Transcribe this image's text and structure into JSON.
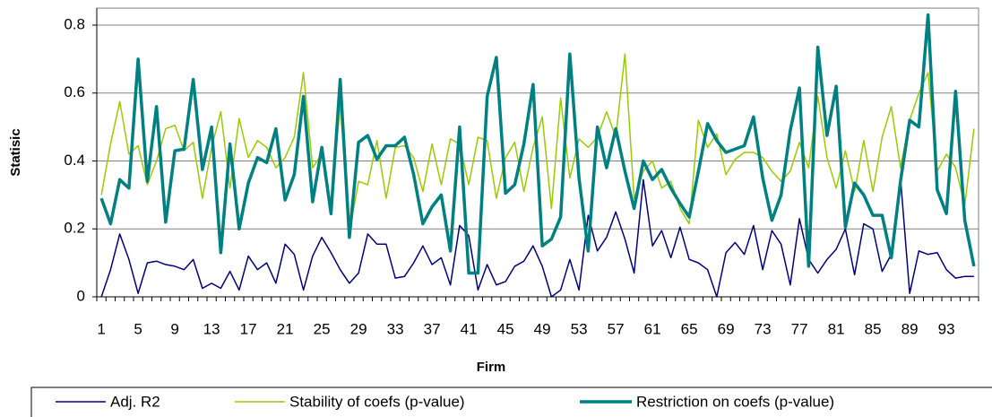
{
  "chart_data": {
    "type": "line",
    "x_label": "Firm",
    "y_label": "Statisic",
    "categories": [
      "1",
      null,
      null,
      null,
      "5",
      null,
      null,
      null,
      "9",
      null,
      null,
      null,
      "13",
      null,
      null,
      null,
      "17",
      null,
      null,
      null,
      "21",
      null,
      null,
      null,
      "25",
      null,
      null,
      null,
      "29",
      null,
      null,
      null,
      "33",
      null,
      null,
      null,
      "37",
      null,
      null,
      null,
      "41",
      null,
      null,
      null,
      "45",
      null,
      null,
      null,
      "49",
      null,
      null,
      null,
      "53",
      null,
      null,
      null,
      "57",
      null,
      null,
      null,
      "61",
      null,
      null,
      null,
      "65",
      null,
      null,
      null,
      "69",
      null,
      null,
      null,
      "73",
      null,
      null,
      null,
      "77",
      null,
      null,
      null,
      "81",
      null,
      null,
      null,
      "85",
      null,
      null,
      null,
      "89",
      null,
      null,
      null,
      "93",
      null,
      null,
      null
    ],
    "series": [
      {
        "name": "Adj. R2",
        "color": "#000080",
        "values": [
          0,
          0.08,
          0.185,
          0.11,
          0.01,
          0.1,
          0.105,
          0.095,
          0.09,
          0.08,
          0.11,
          0.025,
          0.04,
          0.025,
          0.075,
          0.02,
          0.12,
          0.08,
          0.1,
          0.04,
          0.155,
          0.125,
          0.02,
          0.12,
          0.175,
          0.13,
          0.08,
          0.04,
          0.07,
          0.185,
          0.155,
          0.155,
          0.055,
          0.06,
          0.1,
          0.15,
          0.095,
          0.115,
          0.035,
          0.21,
          0.18,
          0.02,
          0.095,
          0.035,
          0.045,
          0.09,
          0.105,
          0.15,
          0.09,
          0,
          0.02,
          0.11,
          0.02,
          0.24,
          0.135,
          0.175,
          0.25,
          0.17,
          0.07,
          0.345,
          0.15,
          0.195,
          0.115,
          0.205,
          0.11,
          0.1,
          0.08,
          0,
          0.13,
          0.16,
          0.125,
          0.21,
          0.08,
          0.195,
          0.155,
          0.035,
          0.23,
          0.11,
          0.07,
          0.11,
          0.14,
          0.2,
          0.065,
          0.215,
          0.2,
          0.075,
          0.125,
          0.35,
          0.01,
          0.135,
          0.125,
          0.13,
          0.08,
          0.055,
          0.06,
          0.06
        ]
      },
      {
        "name": "Stability of coefs (p-value)",
        "color": "#99cc00",
        "values": [
          0.3,
          0.45,
          0.575,
          0.42,
          0.445,
          0.33,
          0.4,
          0.495,
          0.505,
          0.43,
          0.455,
          0.29,
          0.44,
          0.545,
          0.32,
          0.525,
          0.41,
          0.46,
          0.44,
          0.38,
          0.41,
          0.47,
          0.66,
          0.38,
          0.42,
          0.25,
          0.57,
          0.19,
          0.34,
          0.33,
          0.46,
          0.29,
          0.44,
          0.445,
          0.41,
          0.31,
          0.45,
          0.33,
          0.465,
          0.45,
          0.33,
          0.47,
          0.46,
          0.29,
          0.41,
          0.455,
          0.31,
          0.44,
          0.53,
          0.26,
          0.585,
          0.35,
          0.465,
          0.44,
          0.47,
          0.545,
          0.47,
          0.715,
          0.29,
          0.37,
          0.4,
          0.32,
          0.34,
          0.26,
          0.215,
          0.52,
          0.44,
          0.48,
          0.36,
          0.405,
          0.425,
          0.425,
          0.41,
          0.37,
          0.34,
          0.37,
          0.455,
          0.38,
          0.59,
          0.41,
          0.32,
          0.43,
          0.31,
          0.46,
          0.31,
          0.47,
          0.56,
          0.38,
          0.52,
          0.6,
          0.66,
          0.37,
          0.42,
          0.38,
          0.27,
          0.495
        ]
      },
      {
        "name": "Restriction on coefs (p-value)",
        "color": "#008080",
        "values": [
          0.29,
          0.215,
          0.345,
          0.32,
          0.7,
          0.34,
          0.56,
          0.22,
          0.43,
          0.435,
          0.64,
          0.375,
          0.5,
          0.13,
          0.45,
          0.2,
          0.335,
          0.41,
          0.395,
          0.495,
          0.285,
          0.36,
          0.59,
          0.28,
          0.44,
          0.245,
          0.64,
          0.175,
          0.455,
          0.475,
          0.405,
          0.445,
          0.445,
          0.47,
          0.36,
          0.215,
          0.265,
          0.3,
          0.135,
          0.5,
          0.07,
          0.07,
          0.59,
          0.705,
          0.305,
          0.33,
          0.45,
          0.625,
          0.15,
          0.17,
          0.235,
          0.715,
          0.35,
          0.135,
          0.5,
          0.38,
          0.495,
          0.37,
          0.26,
          0.4,
          0.345,
          0.375,
          0.32,
          0.275,
          0.235,
          0.37,
          0.51,
          0.46,
          0.425,
          0.435,
          0.445,
          0.53,
          0.35,
          0.225,
          0.3,
          0.49,
          0.615,
          0.09,
          0.735,
          0.475,
          0.62,
          0.205,
          0.335,
          0.3,
          0.24,
          0.24,
          0.115,
          0.34,
          0.52,
          0.5,
          0.83,
          0.315,
          0.245,
          0.605,
          0.225,
          0.09
        ]
      }
    ],
    "ylim": [
      0,
      0.85
    ],
    "yticks": [
      0,
      {
        "value": 0.2,
        "label": "0.2"
      },
      {
        "value": 0.4,
        "label": "0.4"
      },
      {
        "value": 0.6,
        "label": "0.6"
      },
      {
        "value": 0.8,
        "label": "0.8"
      }
    ],
    "grid": true,
    "legend": "bottom"
  }
}
